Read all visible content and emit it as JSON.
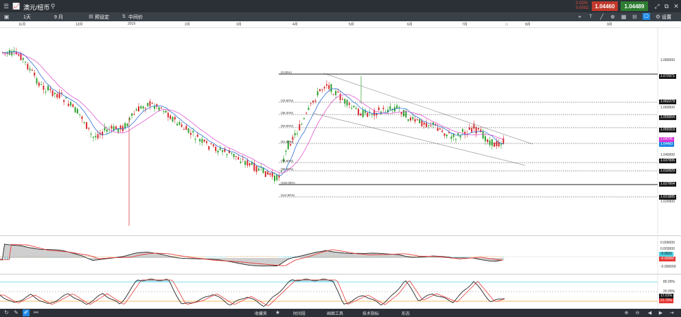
{
  "header": {
    "menu_icon": "hamburger-icon",
    "chart_icon": "line-chart-icon",
    "title": "澳元/纽币",
    "search_icon": "search-icon",
    "change_pct": "0.02%",
    "change_abs": "0.0002",
    "bid": "1.04460",
    "ask": "1.04489",
    "colors": {
      "bid_bg": "#c0392b",
      "ask_bg": "#2e7d32",
      "bar_bg": "#2b3036"
    }
  },
  "toolbar": {
    "interval": "1天",
    "range": "9 月",
    "preset": "预设定",
    "price_type": "中间价",
    "settings": "设置"
  },
  "time_axis": [
    "11月",
    "12月",
    "2019",
    "2月",
    "3月",
    "4月",
    "5月",
    "6月",
    "7月",
    "8月",
    "9月"
  ],
  "price_axis": [
    "1.080000",
    "1.060000",
    "1.040000",
    "1.020000"
  ],
  "price_tags": [
    "1.072971",
    "1.062279",
    "1.055664",
    "1.050318",
    "1.037995",
    "1.032829",
    "1.027664",
    "1.021885"
  ],
  "current_tags": [
    "1.04741",
    "1.04460"
  ],
  "fib_levels": [
    "(0.00%)",
    "(23.60%)",
    "(38.20%)",
    "(50.00%)",
    "(61.80%)",
    "(78.60%)",
    "(88.60%)",
    "(100.00%)",
    "(112.80%)"
  ],
  "macd_axis": [
    "0.006000",
    "0.003000",
    "0.000000",
    "-0.006000"
  ],
  "macd_tags": [
    "-0.0021",
    "-0.00080"
  ],
  "stoch_axis": [
    "80.00%",
    "20.00%"
  ],
  "stoch_tags": [
    "17.01%",
    "21.70%"
  ],
  "bottom": {
    "collect": "收藏夹",
    "timeframe": "时间段",
    "draw": "画图工具",
    "tech": "技术指标",
    "shape": "形态"
  }
}
